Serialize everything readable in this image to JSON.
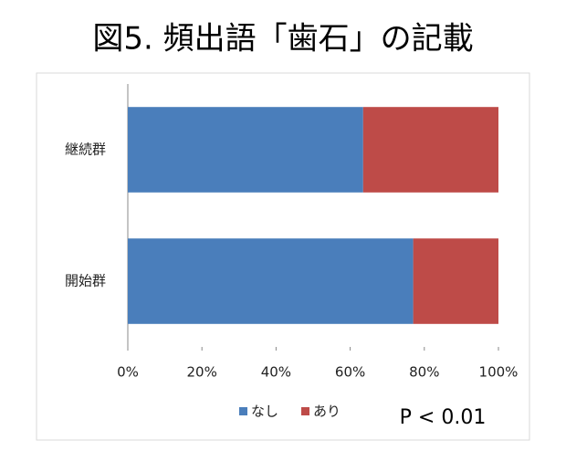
{
  "chart_data": {
    "type": "stacked-bar-horizontal",
    "title": "図5. 頻出語「歯石」の記載",
    "categories": [
      "継続群",
      "開始群"
    ],
    "series": [
      {
        "name": "なし",
        "color": "#4a7ebb",
        "values": [
          63.5,
          77
        ]
      },
      {
        "name": "あり",
        "color": "#be4b48",
        "values": [
          36.5,
          23
        ]
      }
    ],
    "xlim": [
      0,
      100
    ],
    "xticks": [
      {
        "value": 0,
        "label": "0%"
      },
      {
        "value": 20,
        "label": "20%"
      },
      {
        "value": 40,
        "label": "40%"
      },
      {
        "value": 60,
        "label": "60%"
      },
      {
        "value": 80,
        "label": "80%"
      },
      {
        "value": 100,
        "label": "100%"
      }
    ],
    "annotation": "P < 0.01",
    "legend": "bottom"
  }
}
